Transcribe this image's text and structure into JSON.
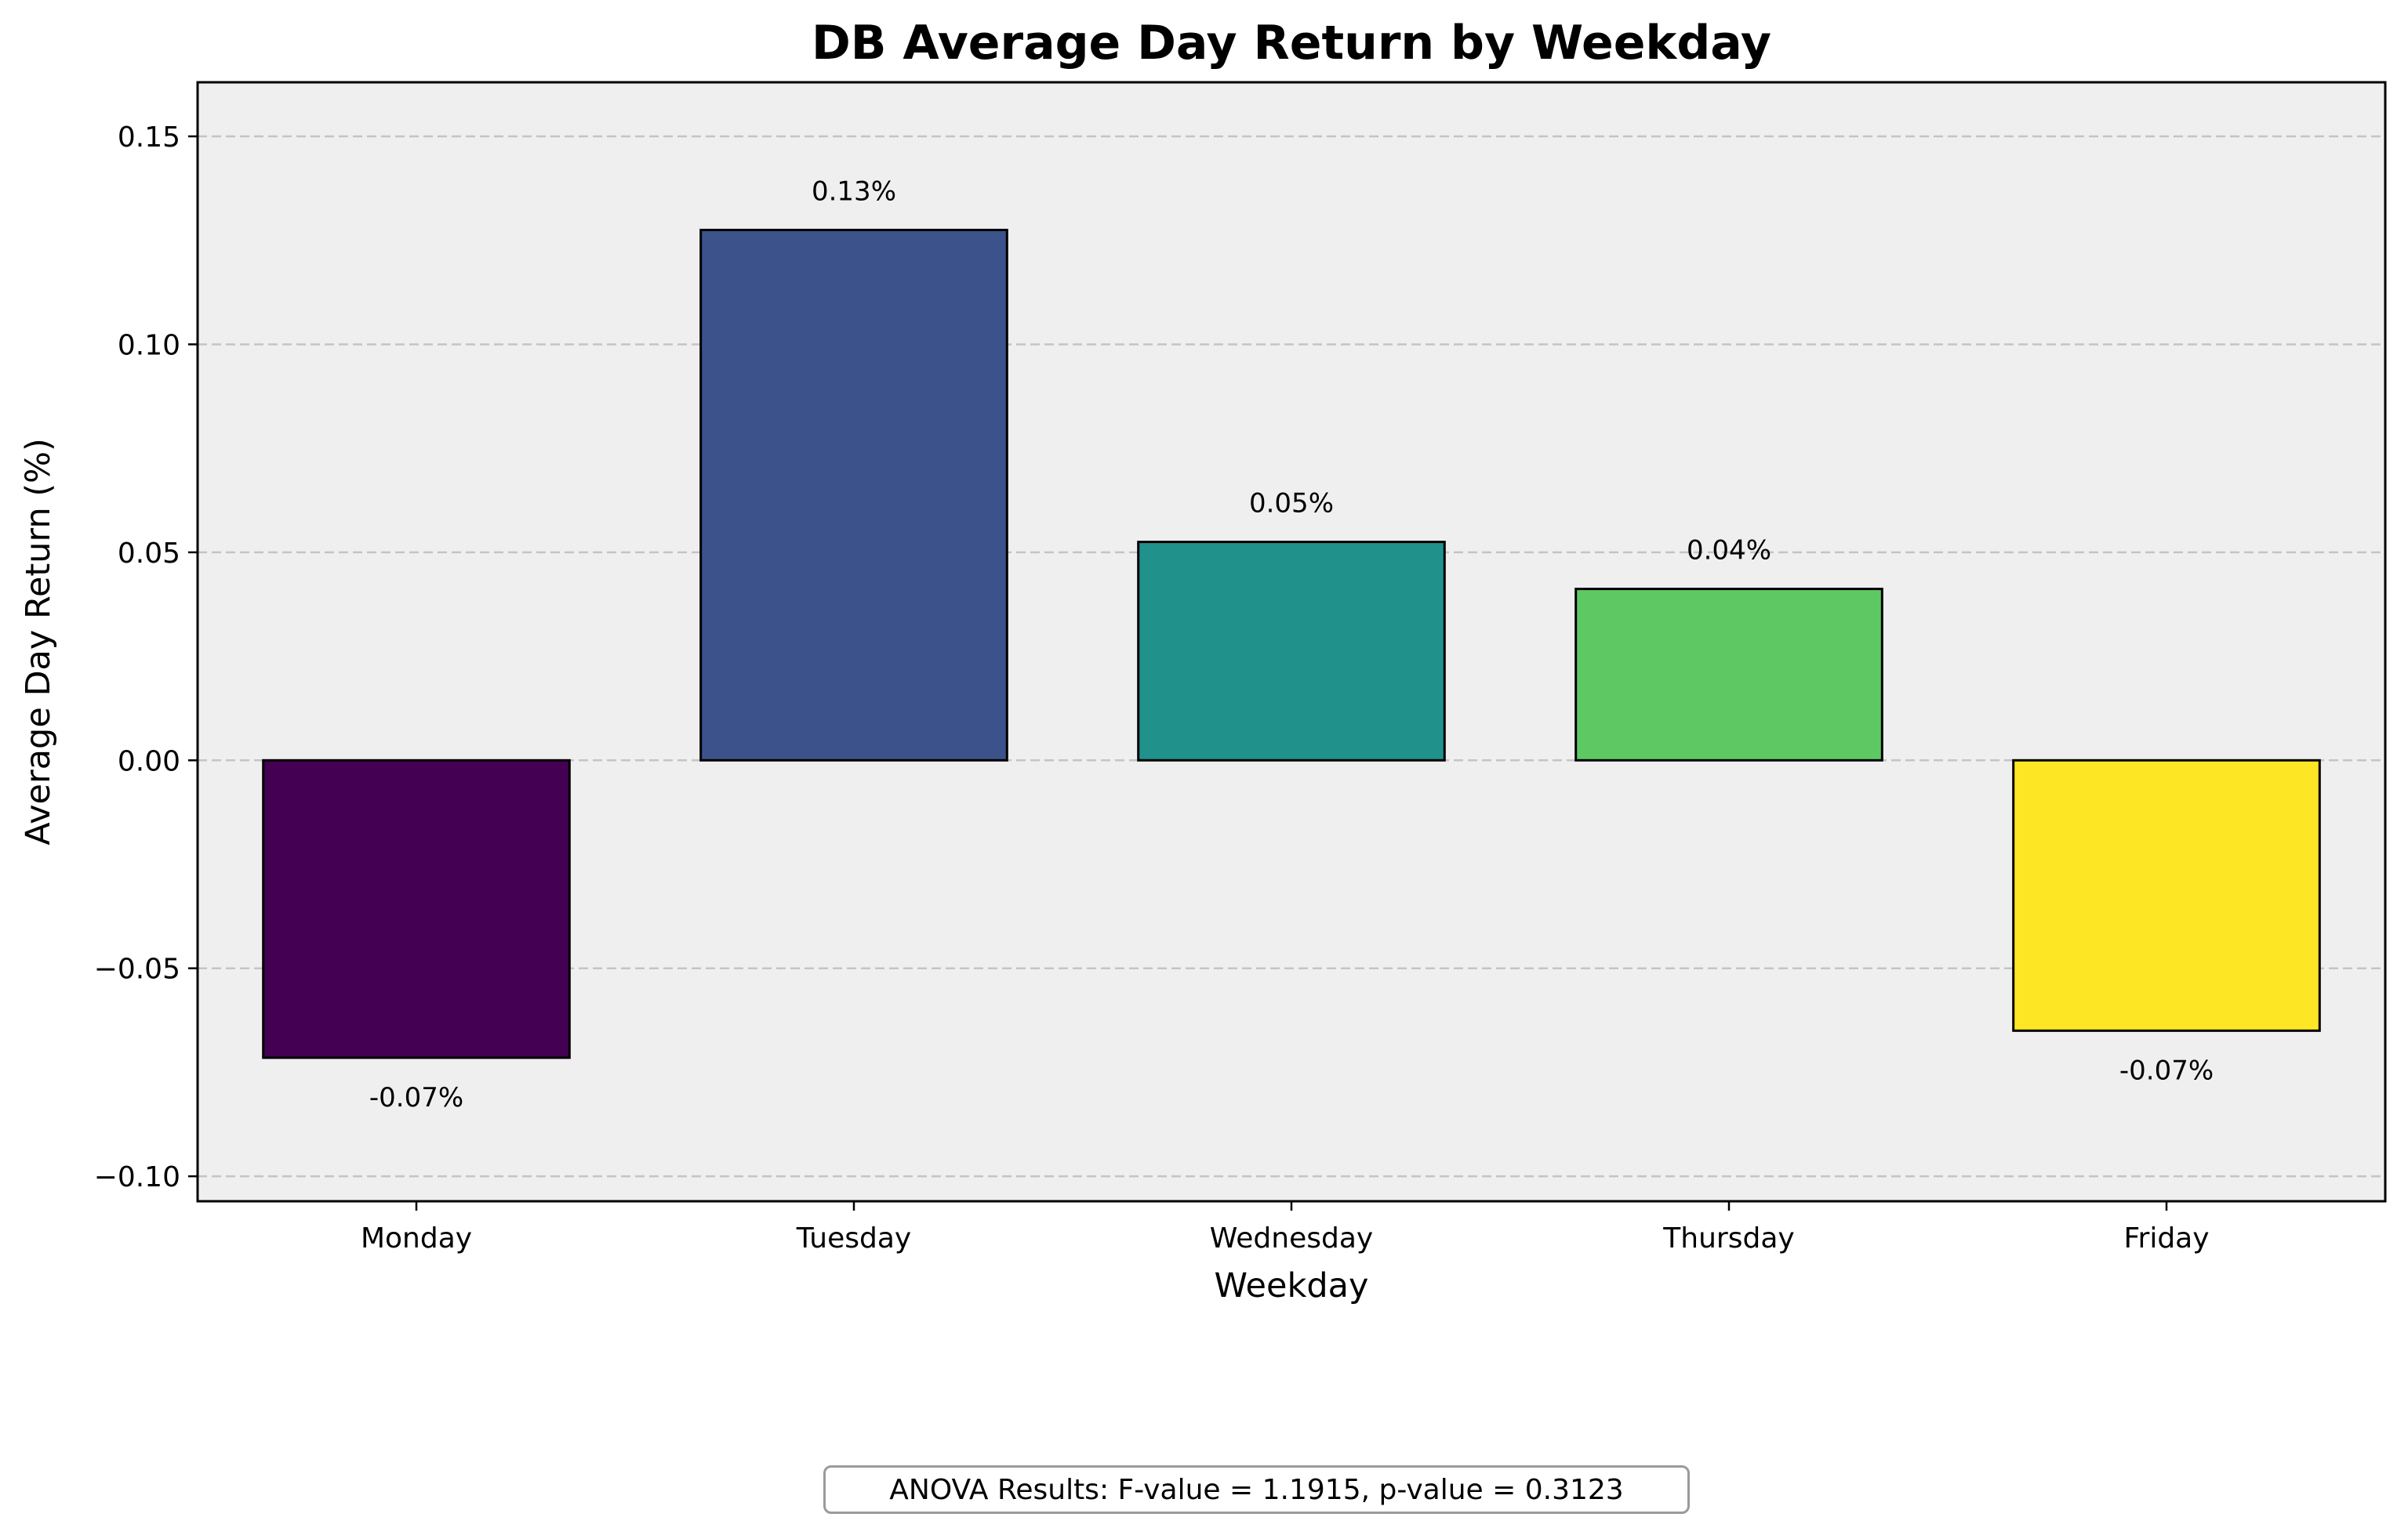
{
  "chart_data": {
    "type": "bar",
    "title": "DB Average Day Return by Weekday",
    "xlabel": "Weekday",
    "ylabel": "Average Day Return (%)",
    "categories": [
      "Monday",
      "Tuesday",
      "Wednesday",
      "Thursday",
      "Friday"
    ],
    "values": [
      -0.0715,
      0.1275,
      0.0525,
      0.0412,
      -0.065
    ],
    "data_labels": [
      "-0.07%",
      "0.13%",
      "0.05%",
      "0.04%",
      "-0.07%"
    ],
    "colors": [
      "#440154",
      "#3b528b",
      "#21918c",
      "#5ec962",
      "#fde725"
    ],
    "ylim": [
      -0.106,
      0.163
    ],
    "yticks": [
      -0.1,
      -0.05,
      0.0,
      0.05,
      0.1,
      0.15
    ],
    "ytick_labels": [
      "−0.10",
      "−0.05",
      "0.00",
      "0.05",
      "0.10",
      "0.15"
    ],
    "grid": "y-dashed",
    "background": "#efefef"
  },
  "annotation": {
    "anova_text": "ANOVA Results: F-value = 1.1915, p-value = 0.3123"
  }
}
